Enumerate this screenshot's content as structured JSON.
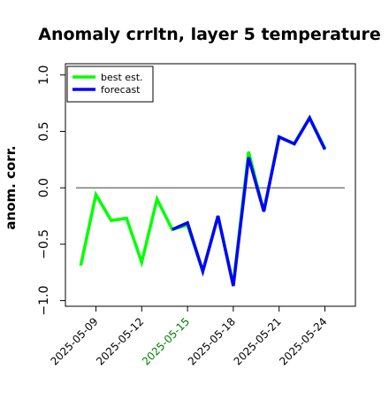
{
  "chart_data": {
    "type": "line",
    "title": "Anomaly crrltn, layer 5 temperature",
    "ylabel": "anom. corr.",
    "xlabel": "",
    "ylim": [
      -1.05,
      1.1
    ],
    "xlim": [
      "2025-05-07",
      "2025-05-26"
    ],
    "yticks": [
      1.0,
      0.5,
      0.0,
      -0.5,
      -1.0
    ],
    "ytick_labels": [
      "1.0",
      "0.5",
      "0.0",
      "−0.5",
      "−1.0"
    ],
    "xticks": [
      "2025-05-09",
      "2025-05-12",
      "2025-05-15",
      "2025-05-18",
      "2025-05-21",
      "2025-05-24"
    ],
    "xtick_labels": [
      "2025-05-09",
      "2025-05-12",
      "2025-05-15",
      "2025-05-18",
      "2025-05-21",
      "2025-05-24"
    ],
    "xtick_label_colors": [
      "#000000",
      "#000000",
      "#008000",
      "#000000",
      "#000000",
      "#000000"
    ],
    "reference_line": 0.0,
    "legend": {
      "position": "top-left"
    },
    "series": [
      {
        "name": "best est.",
        "color": "#00ff00",
        "x": [
          "2025-05-08",
          "2025-05-09",
          "2025-05-10",
          "2025-05-11",
          "2025-05-12",
          "2025-05-13",
          "2025-05-14",
          "2025-05-15",
          "2025-05-16",
          "2025-05-17",
          "2025-05-18",
          "2025-05-19",
          "2025-05-20",
          "2025-05-21",
          "2025-05-22",
          "2025-05-23",
          "2025-05-24"
        ],
        "y": [
          -0.69,
          -0.06,
          -0.29,
          -0.27,
          -0.66,
          -0.1,
          -0.37,
          -0.33,
          -0.74,
          -0.25,
          -0.86,
          0.32,
          -0.21,
          0.45,
          0.39,
          0.62,
          0.35
        ]
      },
      {
        "name": "forecast",
        "color": "#0000ff",
        "x": [
          "2025-05-14",
          "2025-05-15",
          "2025-05-16",
          "2025-05-17",
          "2025-05-18",
          "2025-05-19",
          "2025-05-20",
          "2025-05-21",
          "2025-05-22",
          "2025-05-23",
          "2025-05-24"
        ],
        "y": [
          -0.37,
          -0.31,
          -0.74,
          -0.25,
          -0.87,
          0.27,
          -0.21,
          0.45,
          0.39,
          0.62,
          0.34
        ]
      }
    ]
  }
}
